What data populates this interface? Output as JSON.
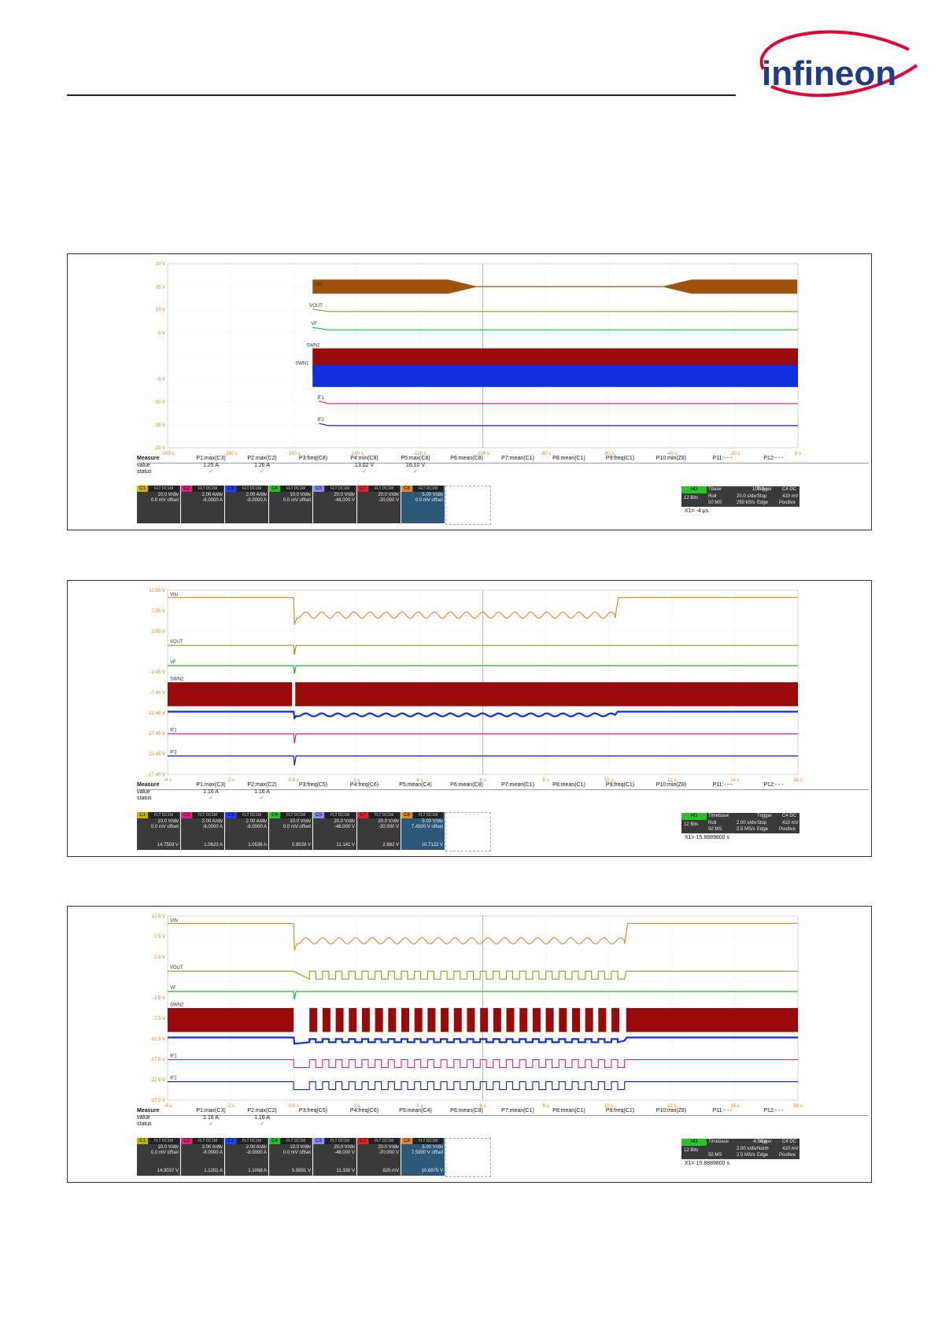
{
  "logo_text": "infineon",
  "panels": [
    {
      "y_ticks": [
        "20 V",
        "15 V",
        "10 V",
        "5 V",
        "",
        "-5 V",
        "-10 V",
        "-15 V",
        "-20 V"
      ],
      "x_ticks": [
        "-200 s",
        "-180 s",
        "-160 s",
        "-140 s",
        "-120 s",
        "-100 s",
        "-80 s",
        "-60 s",
        "-40 s",
        "-20 s",
        "0 s"
      ],
      "trace_labels": [
        "VIN",
        "VOUT",
        "VF",
        "SWN2",
        "SWN1",
        "IF1",
        "IF2"
      ],
      "measure": {
        "title": "Measure",
        "row_labels": [
          "value",
          "status"
        ],
        "params": [
          "P1:max(C3)",
          "P2:max(C2)",
          "P3:freq(C8)",
          "P4:min(C8)",
          "P5:max(C8)",
          "P6:mean(C8)",
          "P7:mean(C1)",
          "P8:mean(C1)",
          "P9:freq(C1)",
          "P10:min(Z8)",
          "P11:- - -",
          "P12:- - -"
        ],
        "values": [
          "1.25 A",
          "1.26 A",
          "",
          "13.02 V",
          "16.10 V",
          "",
          "",
          "",
          "",
          "",
          "",
          ""
        ],
        "status": [
          "✓",
          "✓",
          "",
          "✓",
          "✓",
          "",
          "",
          "",
          "",
          "",
          "",
          ""
        ]
      },
      "channels": [
        {
          "tag": "C1",
          "flt": "FLT DC1M",
          "scale": "10.0 V/div",
          "offset": "0.0 mV offset",
          "reading": "",
          "color": "#c8b400"
        },
        {
          "tag": "C2",
          "flt": "FLT DC1M",
          "scale": "2.00 A/div",
          "offset": "-8.0000 A",
          "reading": "",
          "color": "#e0207a"
        },
        {
          "tag": "C3",
          "flt": "FLT DC1M",
          "scale": "2.00 A/div",
          "offset": "-8.0000 A",
          "reading": "",
          "color": "#2040ff"
        },
        {
          "tag": "C4",
          "flt": "FLT DC1M",
          "scale": "10.0 V/div",
          "offset": "0.0 mV offset",
          "reading": "",
          "color": "#22c022"
        },
        {
          "tag": "C5",
          "flt": "FLT DC1M",
          "scale": "20.0 V/div",
          "offset": "-48.000 V",
          "reading": "",
          "color": "#8a8aff"
        },
        {
          "tag": "C7",
          "flt": "FLT DC1M",
          "scale": "20.0 V/div",
          "offset": "-20.000 V",
          "reading": "",
          "color": "#e02020"
        },
        {
          "tag": "C8",
          "flt": "FLT DC1M",
          "scale": "5.00 V/div",
          "offset": "0.0 mV offset",
          "reading": "",
          "color": "#e08a20"
        }
      ],
      "timebase": {
        "hd": "HD",
        "bits": "12 Bits",
        "tb_label": "Tbase",
        "tb_val": "100.0 s",
        "mode": "Roll",
        "sdiv": "20.0 s/div",
        "ms": "50 MS",
        "rate": "250 kS/s",
        "trig_label": "Trigger",
        "trig_ch": "C4 DC",
        "stop": "Stop",
        "level": "410 mV",
        "edge": "Edge",
        "slope": "Positive"
      },
      "x1": "X1=  -4 μs"
    },
    {
      "y_ticks": [
        "12.55 V",
        "7.55 V",
        "2.55 V",
        "",
        "-2.45 V",
        "-7.45 V",
        "-12.45 V",
        "-17.45 V",
        "-22.45 V",
        "-27.45 V"
      ],
      "x_ticks": [
        "-4 s",
        "-2 s",
        "0.0 s",
        "2 s",
        "4 s",
        "6 s",
        "8 s",
        "10 s",
        "12 s",
        "14 s",
        "16 s"
      ],
      "trace_labels": [
        "VIN",
        "VOUT",
        "VF",
        "SWN2",
        "SWN1",
        "IF1",
        "IF2"
      ],
      "measure": {
        "title": "Measure",
        "row_labels": [
          "value",
          "status"
        ],
        "params": [
          "P1:max(C3)",
          "P2:max(C2)",
          "P3:freq(C5)",
          "P4:freq(C6)",
          "P5:mean(C4)",
          "P6:mean(C8)",
          "P7:mean(C1)",
          "P8:mean(C1)",
          "P9:freq(C1)",
          "P10:min(Z8)",
          "P11:- - -",
          "P12:- - -"
        ],
        "values": [
          "1.16 A",
          "1.16 A",
          "",
          "",
          "",
          "",
          "",
          "",
          "",
          "",
          "",
          ""
        ],
        "status": [
          "✓",
          "✓",
          "",
          "",
          "",
          "",
          "",
          "",
          "",
          "",
          "",
          ""
        ]
      },
      "channels": [
        {
          "tag": "C1",
          "flt": "FLT DC1M",
          "scale": "10.0 V/div",
          "offset": "0.0 mV offset",
          "reading": "14.7559 V",
          "color": "#c8b400"
        },
        {
          "tag": "C2",
          "flt": "FLT DC1M",
          "scale": "2.00 A/div",
          "offset": "-8.0000 A",
          "reading": "1.0623 A",
          "color": "#e0207a"
        },
        {
          "tag": "C3",
          "flt": "FLT DC1M",
          "scale": "2.00 A/div",
          "offset": "-8.0000 A",
          "reading": "1.0536 A",
          "color": "#2040ff"
        },
        {
          "tag": "C4",
          "flt": "FLT DC1M",
          "scale": "10.0 V/div",
          "offset": "0.0 mV offset",
          "reading": "5.9026 V",
          "color": "#22c022"
        },
        {
          "tag": "C5",
          "flt": "FLT DC1M",
          "scale": "20.0 V/div",
          "offset": "-48.000 V",
          "reading": "11.141 V",
          "color": "#8a8aff"
        },
        {
          "tag": "C7",
          "flt": "FLT DC1M",
          "scale": "20.0 V/div",
          "offset": "-20.000 V",
          "reading": "2.882 V",
          "color": "#e02020"
        },
        {
          "tag": "C8",
          "flt": "FLT DC1M",
          "scale": "5.00 V/div",
          "offset": "7.4500 V offset",
          "reading": "10.7122 V",
          "color": "#e08a20"
        }
      ],
      "timebase": {
        "hd": "HD",
        "bits": "12 Bits",
        "tb_label": "Timebase",
        "tb_val": "",
        "mode": "Roll",
        "sdiv": "2.00 s/div",
        "ms": "50 MS",
        "rate": "2.5 MS/s",
        "trig_label": "Trigger",
        "trig_ch": "C4 DC",
        "stop": "Stop",
        "level": "410 mV",
        "edge": "Edge",
        "slope": "Positive"
      },
      "x1": "X1=  15.8889800 s"
    },
    {
      "y_ticks": [
        "12.5 V",
        "7.5 V",
        "2.5 V",
        "",
        "-2.5 V",
        "-7.5 V",
        "-12.5 V",
        "-17.5 V",
        "-22.5 V",
        "-27.5 V"
      ],
      "x_ticks": [
        "-4 s",
        "-2 s",
        "0.0 s",
        "2 s",
        "4 s",
        "6 s",
        "8 s",
        "10 s",
        "12 s",
        "14 s",
        "16 s"
      ],
      "trace_labels": [
        "VIN",
        "VOUT",
        "VF",
        "SWN2",
        "SWN1",
        "IF1",
        "IF2"
      ],
      "measure": {
        "title": "Measure",
        "row_labels": [
          "value",
          "status"
        ],
        "params": [
          "P1:max(C3)",
          "P2:max(C2)",
          "P3:freq(C5)",
          "P4:freq(C6)",
          "P5:mean(C4)",
          "P6:mean(C8)",
          "P7:mean(C1)",
          "P8:mean(C1)",
          "P9:freq(C1)",
          "P10:min(Z8)",
          "P11:- - -",
          "P12:- - -"
        ],
        "values": [
          "1.16 A",
          "1.16 A",
          "",
          "",
          "",
          "",
          "",
          "",
          "",
          "",
          "",
          ""
        ],
        "status": [
          "✓",
          "✓",
          "",
          "",
          "",
          "",
          "",
          "",
          "",
          "",
          "",
          ""
        ]
      },
      "channels": [
        {
          "tag": "C1",
          "flt": "FLT DC1M",
          "scale": "10.0 V/div",
          "offset": "0.0 mV offset",
          "reading": "14.9037 V",
          "color": "#c8b400"
        },
        {
          "tag": "C2",
          "flt": "FLT DC1M",
          "scale": "2.00 A/div",
          "offset": "-8.0000 A",
          "reading": "1.1201 A",
          "color": "#e0207a"
        },
        {
          "tag": "C3",
          "flt": "FLT DC1M",
          "scale": "2.00 A/div",
          "offset": "-8.0000 A",
          "reading": "1.1068 A",
          "color": "#2040ff"
        },
        {
          "tag": "C4",
          "flt": "FLT DC1M",
          "scale": "10.0 V/div",
          "offset": "0.0 mV offset",
          "reading": "5.9891 V",
          "color": "#22c022"
        },
        {
          "tag": "C5",
          "flt": "FLT DC1M",
          "scale": "20.0 V/div",
          "offset": "-48.000 V",
          "reading": "11.330 V",
          "color": "#8a8aff"
        },
        {
          "tag": "C7",
          "flt": "FLT DC1M",
          "scale": "20.0 V/div",
          "offset": "-20.000 V",
          "reading": "825 mV",
          "color": "#e02020"
        },
        {
          "tag": "C8",
          "flt": "FLT DC1M",
          "scale": "5.00 V/div",
          "offset": "7.5000 V offset",
          "reading": "10.6975 V",
          "color": "#e08a20"
        }
      ],
      "timebase": {
        "hd": "HD",
        "bits": "12 Bits",
        "tb_label": "Timebase",
        "tb_val": "-6.00 s",
        "mode": "",
        "sdiv": "2.00 s/div",
        "ms": "50 MS",
        "rate": "2.5 MS/s",
        "trig_label": "Trigger",
        "trig_ch": "C4 DC",
        "stop": "Norm",
        "level": "410 mV",
        "edge": "Edge",
        "slope": "Positive"
      },
      "x1": "X1=  15.8889800 s"
    }
  ],
  "chart_data": [
    {
      "type": "line",
      "x_range": [
        -200,
        0
      ],
      "x_unit": "s",
      "y_range": [
        -20,
        20
      ],
      "y_unit": "V",
      "series": [
        {
          "name": "VIN"
        },
        {
          "name": "VOUT"
        },
        {
          "name": "VF"
        },
        {
          "name": "SWN2"
        },
        {
          "name": "SWN1"
        },
        {
          "name": "IF1"
        },
        {
          "name": "IF2"
        }
      ]
    },
    {
      "type": "line",
      "x_range": [
        -4,
        16
      ],
      "x_unit": "s",
      "y_range": [
        -27.45,
        12.55
      ],
      "y_unit": "V",
      "series": [
        {
          "name": "VIN"
        },
        {
          "name": "VOUT"
        },
        {
          "name": "VF"
        },
        {
          "name": "SWN2"
        },
        {
          "name": "SWN1"
        },
        {
          "name": "IF1"
        },
        {
          "name": "IF2"
        }
      ]
    },
    {
      "type": "line",
      "x_range": [
        -4,
        16
      ],
      "x_unit": "s",
      "y_range": [
        -27.5,
        12.5
      ],
      "y_unit": "V",
      "series": [
        {
          "name": "VIN"
        },
        {
          "name": "VOUT"
        },
        {
          "name": "VF"
        },
        {
          "name": "SWN2"
        },
        {
          "name": "SWN1"
        },
        {
          "name": "IF1"
        },
        {
          "name": "IF2"
        }
      ]
    }
  ],
  "colors": {
    "vin": "#e07a10",
    "vout": "#9a9a10",
    "vf": "#22b822",
    "swn2": "#9a0a0a",
    "swn1": "#1030e0",
    "if1": "#e0207a",
    "if2": "#1020c0",
    "tick": "#e07a10",
    "logo_red": "#e30034",
    "logo_blue": "#1f3b8c"
  }
}
